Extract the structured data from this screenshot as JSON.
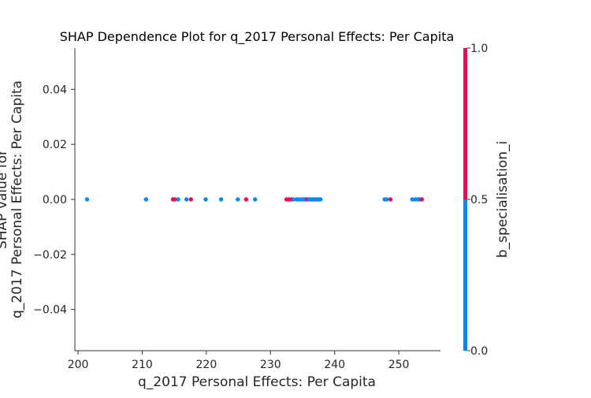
{
  "chart_data": {
    "type": "scatter",
    "title": "SHAP Dependence Plot for q_2017 Personal Effects: Per Capita",
    "xlabel": "q_2017 Personal Effects: Per Capita",
    "ylabel_line1": "SHAP value for",
    "ylabel_line2": "q_2017 Personal Effects: Per Capita",
    "xlim": [
      199.5,
      256.5
    ],
    "ylim": [
      -0.055,
      0.055
    ],
    "xticks": [
      200,
      210,
      220,
      230,
      240,
      250
    ],
    "xtick_labels": [
      "200",
      "210",
      "220",
      "230",
      "240",
      "250"
    ],
    "yticks": [
      0.04,
      0.02,
      0.0,
      -0.02,
      -0.04
    ],
    "ytick_labels": [
      "0.04",
      "0.02",
      "0.00",
      "−0.02",
      "−0.04"
    ],
    "colorbar": {
      "label": "b_specialisation_i",
      "ticks": [
        1.0,
        0.5,
        0.0
      ],
      "tick_labels": [
        "1.0",
        "0.5",
        "0.0"
      ],
      "low_color": "#008afb",
      "high_color": "#ff0052"
    },
    "points": [
      {
        "x": 201.4,
        "y": 0.0,
        "c": 0
      },
      {
        "x": 210.6,
        "y": 0.0,
        "c": 0
      },
      {
        "x": 214.8,
        "y": 0.0,
        "c": 1
      },
      {
        "x": 215.1,
        "y": 0.0,
        "c": 1
      },
      {
        "x": 215.6,
        "y": 0.0,
        "c": 0
      },
      {
        "x": 216.9,
        "y": 0.0,
        "c": 0
      },
      {
        "x": 217.6,
        "y": 0.0,
        "c": 1
      },
      {
        "x": 219.9,
        "y": 0.0,
        "c": 0
      },
      {
        "x": 222.3,
        "y": 0.0,
        "c": 0
      },
      {
        "x": 224.9,
        "y": 0.0,
        "c": 0
      },
      {
        "x": 226.2,
        "y": 0.0,
        "c": 1
      },
      {
        "x": 227.6,
        "y": 0.0,
        "c": 0
      },
      {
        "x": 232.5,
        "y": 0.0,
        "c": 1
      },
      {
        "x": 232.9,
        "y": 0.0,
        "c": 1
      },
      {
        "x": 233.3,
        "y": 0.0,
        "c": 1
      },
      {
        "x": 233.6,
        "y": 0.0,
        "c": 0
      },
      {
        "x": 234.1,
        "y": 0.0,
        "c": 0
      },
      {
        "x": 234.5,
        "y": 0.0,
        "c": 0
      },
      {
        "x": 234.9,
        "y": 0.0,
        "c": 0
      },
      {
        "x": 235.2,
        "y": 0.0,
        "c": 0
      },
      {
        "x": 235.5,
        "y": 0.0,
        "c": 0
      },
      {
        "x": 235.7,
        "y": 0.0,
        "c": 1
      },
      {
        "x": 236.0,
        "y": 0.0,
        "c": 0
      },
      {
        "x": 236.3,
        "y": 0.0,
        "c": 0
      },
      {
        "x": 236.6,
        "y": 0.0,
        "c": 0
      },
      {
        "x": 236.9,
        "y": 0.0,
        "c": 0
      },
      {
        "x": 237.2,
        "y": 0.0,
        "c": 0
      },
      {
        "x": 237.5,
        "y": 0.0,
        "c": 0
      },
      {
        "x": 237.8,
        "y": 0.0,
        "c": 0
      },
      {
        "x": 247.8,
        "y": 0.0,
        "c": 0
      },
      {
        "x": 248.1,
        "y": 0.0,
        "c": 0
      },
      {
        "x": 248.7,
        "y": 0.0,
        "c": 1
      },
      {
        "x": 252.1,
        "y": 0.0,
        "c": 0
      },
      {
        "x": 252.6,
        "y": 0.0,
        "c": 0
      },
      {
        "x": 253.0,
        "y": 0.0,
        "c": 0
      },
      {
        "x": 253.3,
        "y": 0.0,
        "c": 0
      },
      {
        "x": 253.6,
        "y": 0.0,
        "c": 1
      }
    ]
  }
}
